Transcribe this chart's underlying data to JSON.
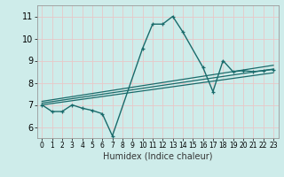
{
  "title": "",
  "xlabel": "Humidex (Indice chaleur)",
  "background_color": "#ceecea",
  "grid_color": "#e8c8c8",
  "line_color": "#1a6b6b",
  "xlim": [
    -0.5,
    23.5
  ],
  "ylim": [
    5.5,
    11.5
  ],
  "xticks": [
    0,
    1,
    2,
    3,
    4,
    5,
    6,
    7,
    8,
    9,
    10,
    11,
    12,
    13,
    14,
    15,
    16,
    17,
    18,
    19,
    20,
    21,
    22,
    23
  ],
  "yticks": [
    6,
    7,
    8,
    9,
    10,
    11
  ],
  "main_line_x": [
    0,
    1,
    2,
    3,
    4,
    5,
    6,
    7,
    10,
    11,
    12,
    13,
    14,
    16,
    17,
    18,
    19,
    20,
    21,
    22,
    23
  ],
  "main_line_y": [
    7.0,
    6.7,
    6.7,
    7.0,
    6.85,
    6.75,
    6.6,
    5.6,
    9.55,
    10.65,
    10.65,
    11.0,
    10.3,
    8.7,
    7.6,
    9.0,
    8.5,
    8.55,
    8.5,
    8.55,
    8.6
  ],
  "reg_lines": [
    {
      "x": [
        0,
        23
      ],
      "y": [
        7.0,
        8.45
      ]
    },
    {
      "x": [
        0,
        23
      ],
      "y": [
        7.08,
        8.62
      ]
    },
    {
      "x": [
        0,
        23
      ],
      "y": [
        7.16,
        8.79
      ]
    }
  ]
}
